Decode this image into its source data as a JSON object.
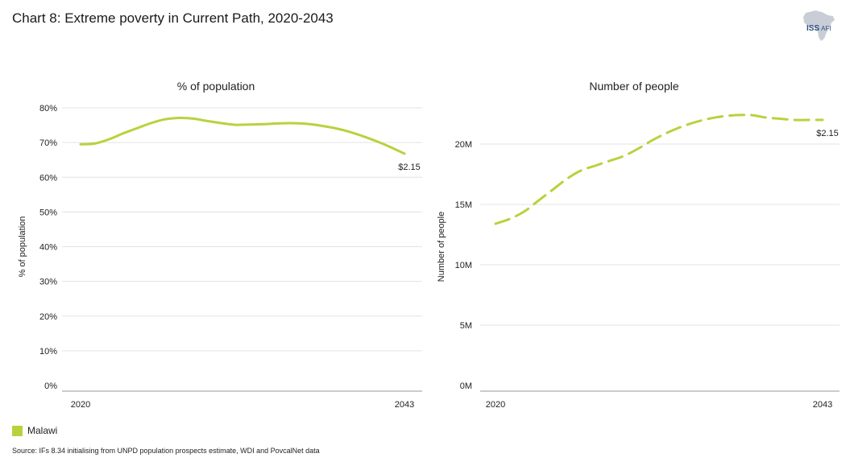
{
  "title": "Chart 8: Extreme poverty in Current Path, 2020-2043",
  "logo": {
    "main": "ISS",
    "sub": "AFI"
  },
  "legend": {
    "label": "Malawi",
    "color": "#b6d33d"
  },
  "source": "Source: IFs 8.34 initialising from UNPD population prospects estimate, WDI and PovcalNet data",
  "chart_data": [
    {
      "type": "line",
      "title": "% of population",
      "ylabel": "% of population",
      "xlabel": "",
      "x_tick_labels": [
        "2020",
        "2043"
      ],
      "y_tick_labels": [
        "0%",
        "10%",
        "20%",
        "30%",
        "40%",
        "50%",
        "60%",
        "70%",
        "80%"
      ],
      "y_ticks": [
        0,
        10,
        20,
        30,
        40,
        50,
        60,
        70,
        80
      ],
      "ylim": [
        0,
        80
      ],
      "xlim": [
        2020,
        2043
      ],
      "grid": true,
      "series": [
        {
          "name": "Malawi",
          "line_style": "solid",
          "x": [
            2020,
            2021,
            2022,
            2023,
            2024,
            2025,
            2026,
            2027,
            2028,
            2029,
            2030,
            2031,
            2032,
            2033,
            2034,
            2035,
            2036,
            2037,
            2038,
            2039,
            2040,
            2041,
            2042,
            2043
          ],
          "values": [
            69.5,
            69.7,
            70.9,
            72.6,
            74.1,
            75.6,
            76.7,
            77.1,
            76.9,
            76.2,
            75.6,
            75.1,
            75.2,
            75.3,
            75.5,
            75.6,
            75.4,
            74.9,
            74.2,
            73.2,
            71.9,
            70.4,
            68.7,
            66.8
          ]
        }
      ],
      "end_label": "$2.15"
    },
    {
      "type": "line",
      "title": "Number of people",
      "ylabel": "Number of people",
      "xlabel": "",
      "x_tick_labels": [
        "2020",
        "2043"
      ],
      "y_tick_labels": [
        "0M",
        "5M",
        "10M",
        "15M",
        "20M"
      ],
      "y_ticks": [
        0,
        5,
        10,
        15,
        20
      ],
      "ylim": [
        0,
        23
      ],
      "xlim": [
        2020,
        2043
      ],
      "grid": true,
      "series": [
        {
          "name": "Malawi",
          "line_style": "dashed",
          "x": [
            2020,
            2021,
            2022,
            2023,
            2024,
            2025,
            2026,
            2027,
            2028,
            2029,
            2030,
            2031,
            2032,
            2033,
            2034,
            2035,
            2036,
            2037,
            2038,
            2039,
            2040,
            2041,
            2042,
            2043
          ],
          "values": [
            13.4,
            13.8,
            14.4,
            15.3,
            16.2,
            17.1,
            17.8,
            18.2,
            18.6,
            19.0,
            19.6,
            20.3,
            20.9,
            21.4,
            21.8,
            22.1,
            22.3,
            22.4,
            22.4,
            22.2,
            22.1,
            22.0,
            22.0,
            22.0
          ]
        }
      ],
      "end_label": "$2.15"
    }
  ]
}
